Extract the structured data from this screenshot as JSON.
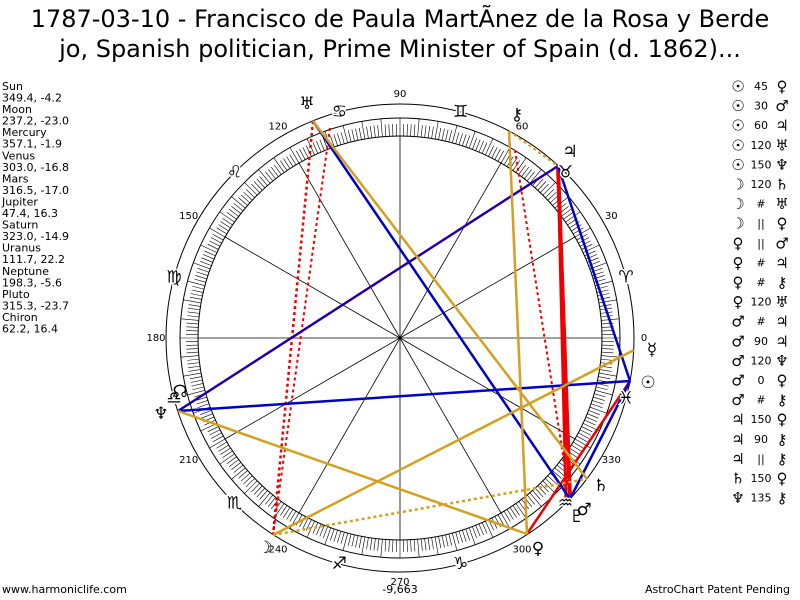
{
  "header": {
    "title_line1": "1787-03-10 - Francisco de Paula MartÃnez de la Rosa y Berde",
    "title_line2": "jo, Spanish politician, Prime Minister of Spain (d. 1862)..."
  },
  "planets": [
    {
      "name": "Sun",
      "position": "349.4, -4.2",
      "glyph": "☉"
    },
    {
      "name": "Moon",
      "position": "237.2, -23.0",
      "glyph": "☽"
    },
    {
      "name": "Mercury",
      "position": "357.1, -1.9",
      "glyph": "☿"
    },
    {
      "name": "Venus",
      "position": "303.0, -16.8",
      "glyph": "♀"
    },
    {
      "name": "Mars",
      "position": "316.5, -17.0",
      "glyph": "♂"
    },
    {
      "name": "Jupiter",
      "position": "47.4, 16.3",
      "glyph": "♃"
    },
    {
      "name": "Saturn",
      "position": "323.0, -14.9",
      "glyph": "♄"
    },
    {
      "name": "Uranus",
      "position": "111.7, 22.2",
      "glyph": "♅"
    },
    {
      "name": "Neptune",
      "position": "198.3, -5.6",
      "glyph": "♆"
    },
    {
      "name": "Pluto",
      "position": "315.3, -23.7",
      "glyph": "♇"
    },
    {
      "name": "Chiron",
      "position": "62.2, 16.4",
      "glyph": "⚷"
    }
  ],
  "node_glyph": "☊",
  "wheel": {
    "degree_labels": [
      "0",
      "30",
      "60",
      "90",
      "120",
      "150",
      "180",
      "210",
      "240",
      "270",
      "300",
      "330"
    ],
    "signs": [
      "♈",
      "♉",
      "♊",
      "♋",
      "♌",
      "♍",
      "♎",
      "♏",
      "♐",
      "♑",
      "♒",
      "♓"
    ]
  },
  "aspects": [
    [
      "☉",
      "45",
      "♀"
    ],
    [
      "☉",
      "30",
      "♂"
    ],
    [
      "☉",
      "60",
      "♃"
    ],
    [
      "☉",
      "120",
      "♅"
    ],
    [
      "☉",
      "150",
      "♆"
    ],
    [
      "☽",
      "120",
      "♄"
    ],
    [
      "☽",
      "#",
      "♅"
    ],
    [
      "☽",
      "||",
      "♀"
    ],
    [
      "♀",
      "||",
      "♂"
    ],
    [
      "♀",
      "#",
      "♃"
    ],
    [
      "♀",
      "#",
      "⚷"
    ],
    [
      "♀",
      "120",
      "♅"
    ],
    [
      "♂",
      "#",
      "♃"
    ],
    [
      "♂",
      "90",
      "♃"
    ],
    [
      "♂",
      "120",
      "♆"
    ],
    [
      "♂",
      "0",
      "♀"
    ],
    [
      "♂",
      "#",
      "⚷"
    ],
    [
      "♃",
      "150",
      "♀"
    ],
    [
      "♃",
      "90",
      "⚷"
    ],
    [
      "♃",
      "||",
      "⚷"
    ],
    [
      "♄",
      "150",
      "♀"
    ],
    [
      "♆",
      "135",
      "⚷"
    ]
  ],
  "footer": {
    "site": "www.harmoniclife.com",
    "score": "-9,663",
    "notice": "AstroChart Patent Pending"
  }
}
